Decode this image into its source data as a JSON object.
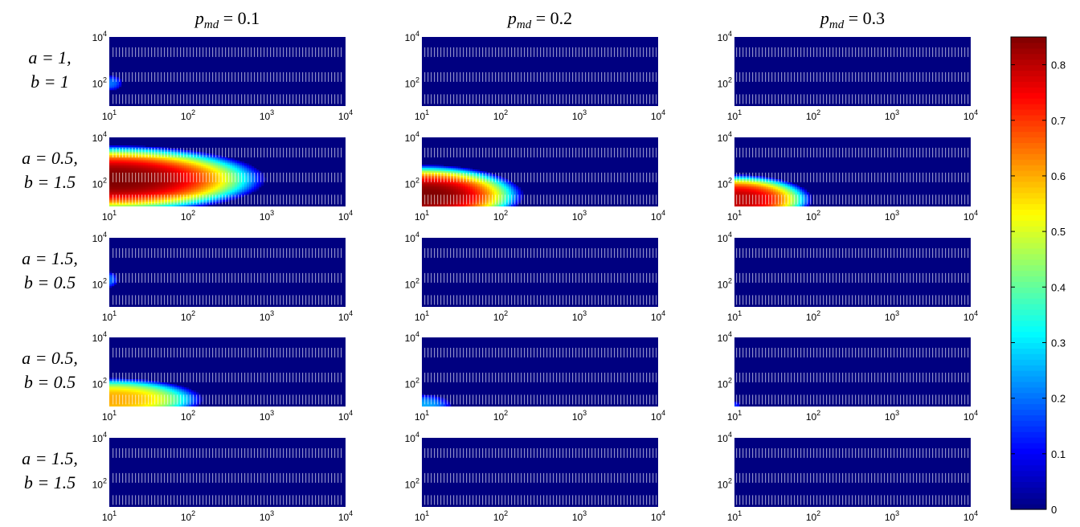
{
  "chart_data": {
    "type": "heatmap",
    "layout": "grid",
    "columns": [
      "p_md = 0.1",
      "p_md = 0.2",
      "p_md = 0.3"
    ],
    "column_titles": [
      {
        "sym": "p",
        "sub": "md",
        "val": " = 0.1"
      },
      {
        "sym": "p",
        "sub": "md",
        "val": " = 0.2"
      },
      {
        "sym": "p",
        "sub": "md",
        "val": " = 0.3"
      }
    ],
    "rows": [
      {
        "line1": "a = 1,",
        "line2": "b = 1"
      },
      {
        "line1": "a = 0.5,",
        "line2": "b = 1.5"
      },
      {
        "line1": "a = 1.5,",
        "line2": "b = 0.5"
      },
      {
        "line1": "a = 0.5,",
        "line2": "b = 0.5"
      },
      {
        "line1": "a = 1.5,",
        "line2": "b = 1.5"
      }
    ],
    "x_axis": {
      "scale": "log",
      "range": [
        10,
        10000
      ],
      "ticks": [
        10,
        100,
        1000,
        10000
      ],
      "tick_labels": [
        {
          "base": "10",
          "exp": "1"
        },
        {
          "base": "10",
          "exp": "2"
        },
        {
          "base": "10",
          "exp": "3"
        },
        {
          "base": "10",
          "exp": "4"
        }
      ]
    },
    "y_axis": {
      "scale": "log",
      "range": [
        10,
        10000
      ],
      "ticks": [
        100,
        10000
      ],
      "tick_labels": [
        {
          "base": "10",
          "exp": "2"
        },
        {
          "base": "10",
          "exp": "4"
        }
      ]
    },
    "grid": false,
    "colorbar": {
      "colormap": "jet",
      "range": [
        0,
        0.85
      ],
      "ticks": [
        "0",
        "0.1",
        "0.2",
        "0.3",
        "0.4",
        "0.5",
        "0.6",
        "0.7",
        "0.8"
      ],
      "tick_values": [
        0,
        0.1,
        0.2,
        0.3,
        0.4,
        0.5,
        0.6,
        0.7,
        0.8
      ]
    },
    "panels": [
      [
        {
          "row": 1,
          "col": 1,
          "peak": 0.2,
          "peak_y": 100,
          "reach_x": 15,
          "spread_y": 0.35
        },
        {
          "row": 1,
          "col": 2,
          "peak": 0.0,
          "peak_y": 100,
          "reach_x": 10,
          "spread_y": 0.3
        },
        {
          "row": 1,
          "col": 3,
          "peak": 0.0,
          "peak_y": 100,
          "reach_x": 10,
          "spread_y": 0.3
        }
      ],
      [
        {
          "row": 2,
          "col": 1,
          "peak": 0.85,
          "peak_y": 150,
          "reach_x": 1000,
          "spread_y": 1.5
        },
        {
          "row": 2,
          "col": 2,
          "peak": 0.85,
          "peak_y": 30,
          "reach_x": 200,
          "spread_y": 1.35
        },
        {
          "row": 2,
          "col": 3,
          "peak": 0.8,
          "peak_y": 20,
          "reach_x": 100,
          "spread_y": 1.1
        }
      ],
      [
        {
          "row": 3,
          "col": 1,
          "peak": 0.2,
          "peak_y": 150,
          "reach_x": 13,
          "spread_y": 0.35
        },
        {
          "row": 3,
          "col": 2,
          "peak": 0.0,
          "peak_y": 100,
          "reach_x": 10,
          "spread_y": 0.3
        },
        {
          "row": 3,
          "col": 3,
          "peak": 0.0,
          "peak_y": 100,
          "reach_x": 10,
          "spread_y": 0.3
        }
      ],
      [
        {
          "row": 4,
          "col": 1,
          "peak": 0.6,
          "peak_y": 20,
          "reach_x": 160,
          "spread_y": 0.95
        },
        {
          "row": 4,
          "col": 2,
          "peak": 0.25,
          "peak_y": 10,
          "reach_x": 25,
          "spread_y": 0.55
        },
        {
          "row": 4,
          "col": 3,
          "peak": 0.15,
          "peak_y": 10,
          "reach_x": 12,
          "spread_y": 0.25
        }
      ],
      [
        {
          "row": 5,
          "col": 1,
          "peak": 0.0,
          "peak_y": 100,
          "reach_x": 10,
          "spread_y": 0.3
        },
        {
          "row": 5,
          "col": 2,
          "peak": 0.0,
          "peak_y": 100,
          "reach_x": 10,
          "spread_y": 0.3
        },
        {
          "row": 5,
          "col": 3,
          "peak": 0.0,
          "peak_y": 100,
          "reach_x": 10,
          "spread_y": 0.3
        }
      ]
    ]
  }
}
